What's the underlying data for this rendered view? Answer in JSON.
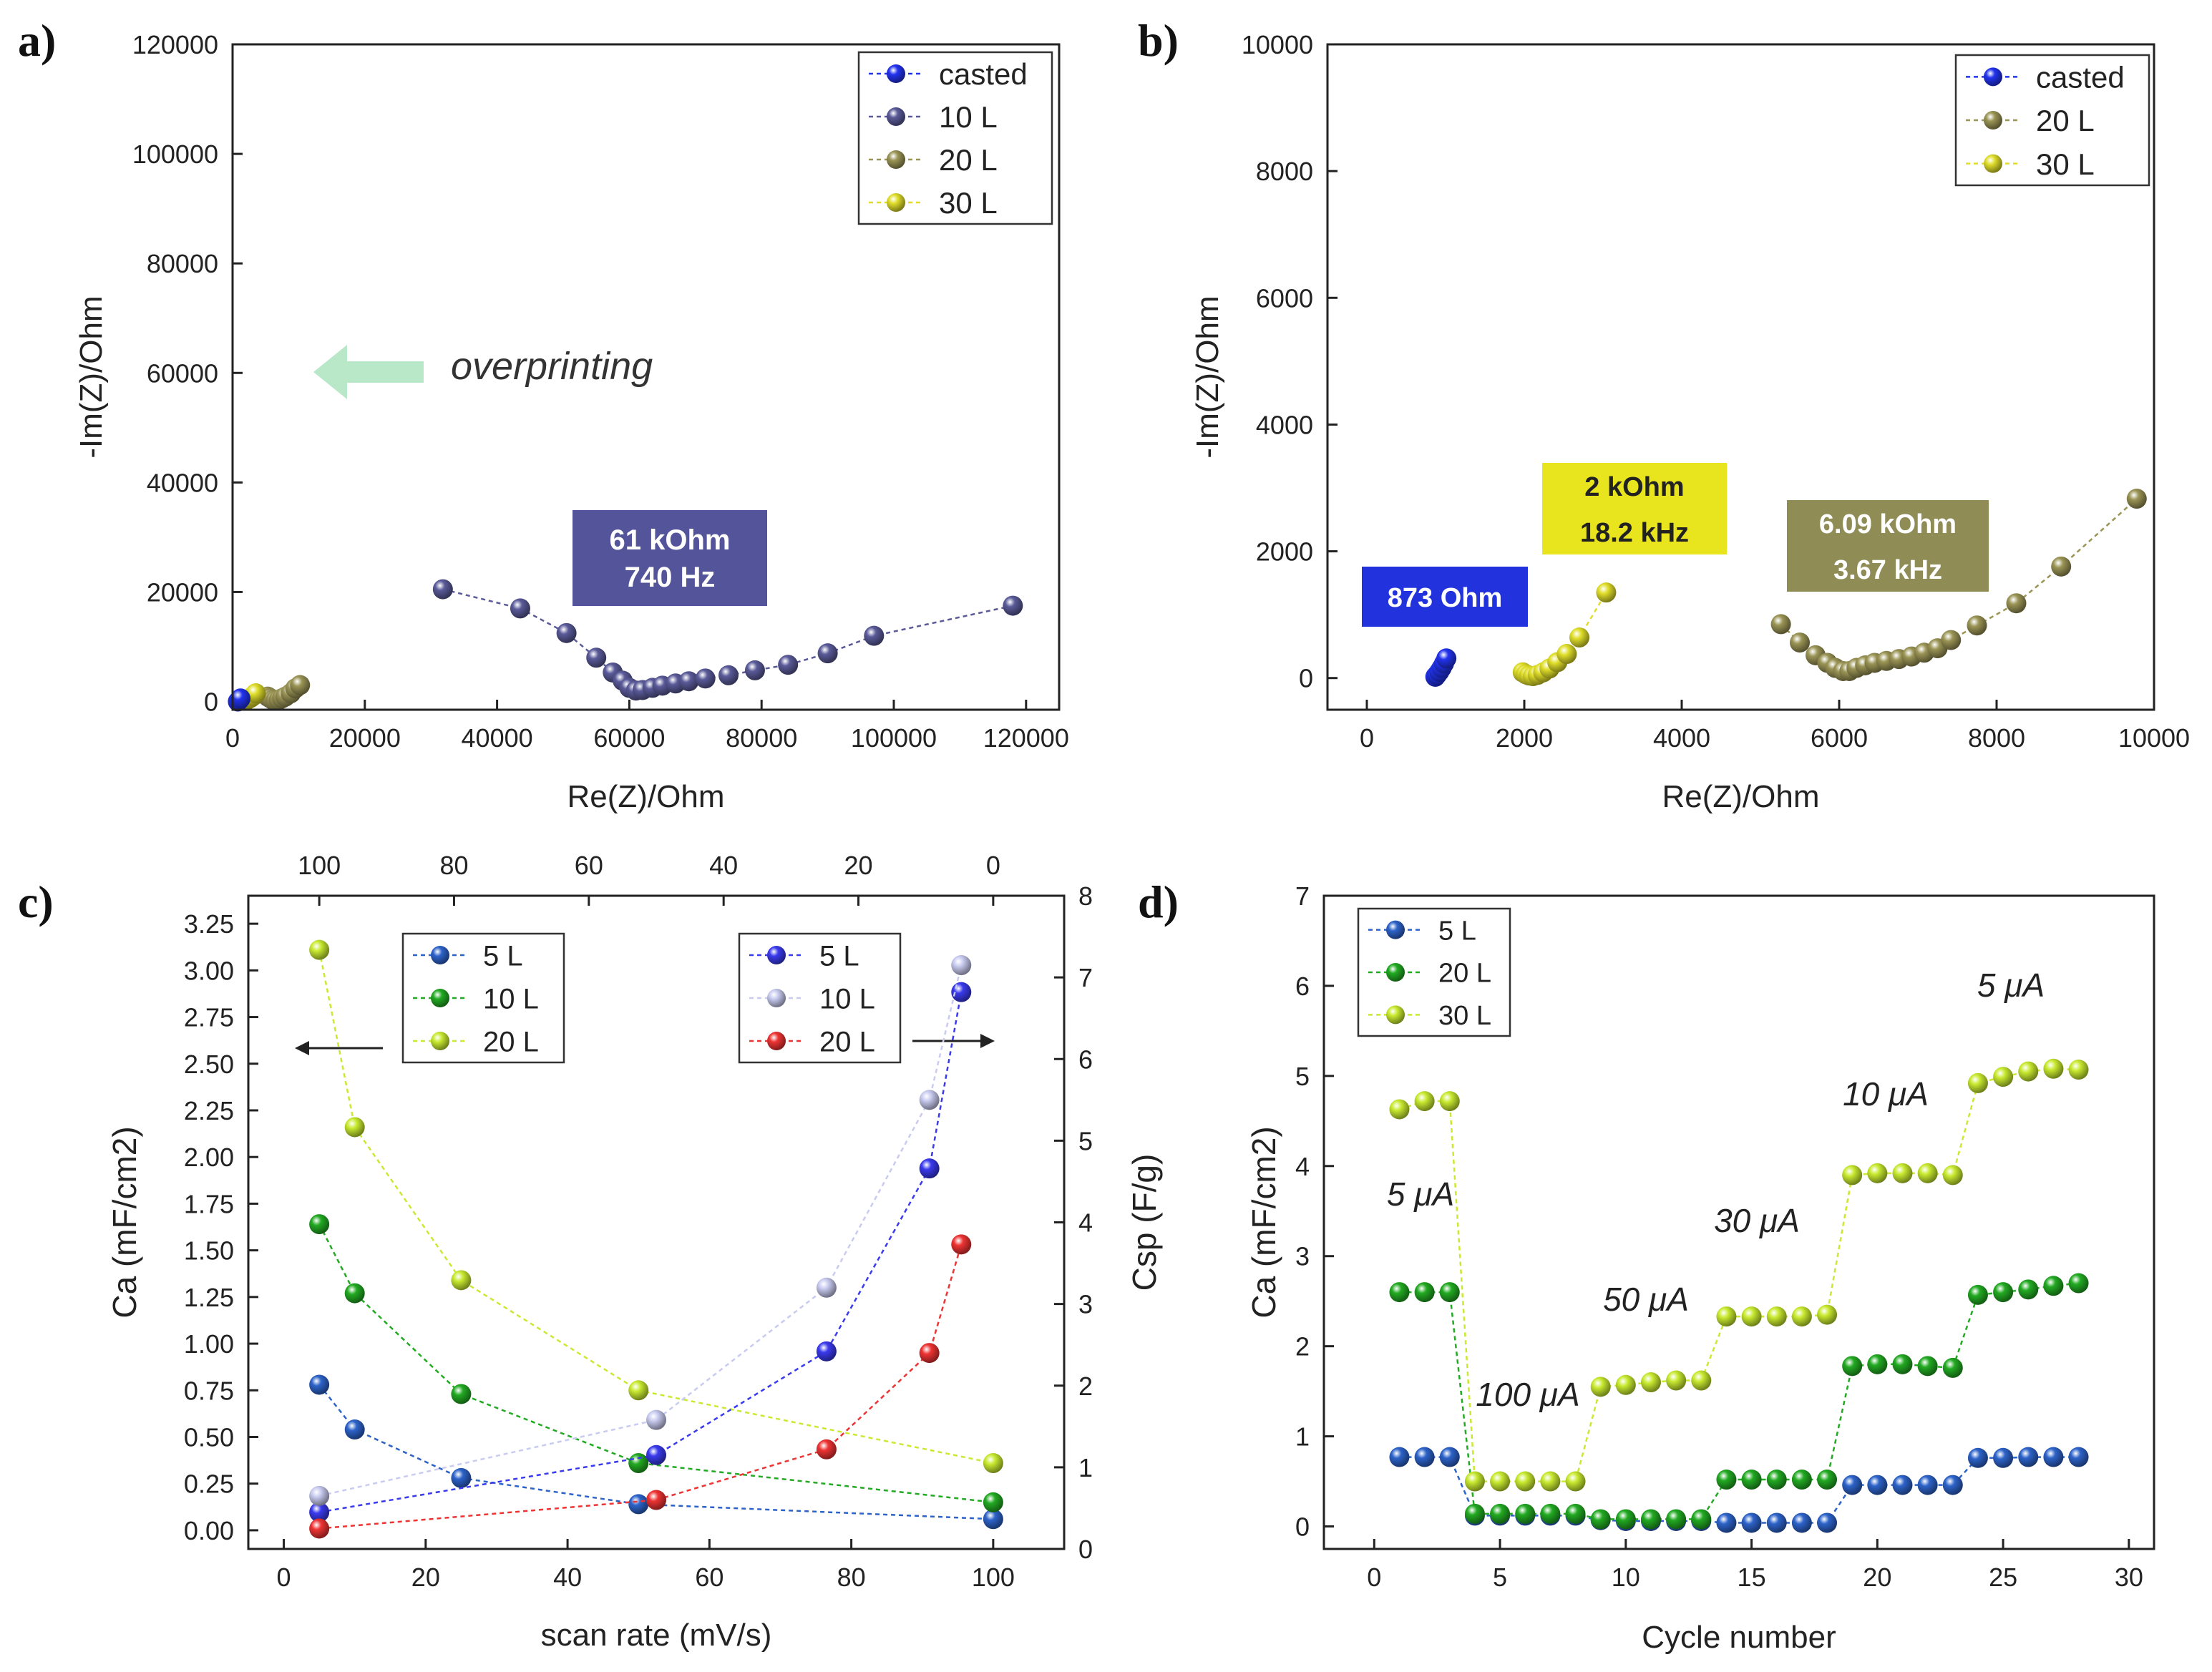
{
  "figure": {
    "panel_letters": [
      "a)",
      "b)",
      "c)",
      "d)"
    ]
  },
  "colors": {
    "casted": "#2233ee",
    "L10": "#5a5a99",
    "L20": "#9a9455",
    "L30": "#e0de2a",
    "box_casted": "#2233dd",
    "box_10L": "#54549a",
    "box_30L": "#e8e41e",
    "box_20L": "#8f8c55",
    "c_blue": "#2d63c9",
    "c_green": "#22aa22",
    "c_lime": "#c8ea30",
    "c_red": "#ee3333",
    "c_purple": "#3a3aee",
    "c_lavender": "#c9cbf0",
    "arrow_green": "#b8e8c8"
  },
  "chart_data": [
    {
      "panel": "a)",
      "type": "scatter",
      "xlabel": "Re(Z)/Ohm",
      "ylabel": "-Im(Z)/Ohm",
      "xlim": [
        0,
        125000
      ],
      "ylim": [
        -1500,
        120000
      ],
      "xticks": [
        "0",
        "20000",
        "40000",
        "60000",
        "80000",
        "100000",
        "120000"
      ],
      "yticks": [
        "0",
        "20000",
        "40000",
        "60000",
        "80000",
        "100000",
        "120000"
      ],
      "annotation_text": "overprinting",
      "box_text": [
        "61 kOhm",
        "740 Hz"
      ],
      "legend": [
        "casted",
        "10 L",
        "20 L",
        "30 L"
      ],
      "series": [
        {
          "name": "casted",
          "color_key": "casted",
          "points": [
            [
              800,
              0
            ],
            [
              1000,
              250
            ],
            [
              1200,
              550
            ]
          ]
        },
        {
          "name": "10 L",
          "color_key": "L10",
          "points": [
            [
              31800,
              20500
            ],
            [
              43500,
              17000
            ],
            [
              50500,
              12500
            ],
            [
              55000,
              8000
            ],
            [
              57500,
              5300
            ],
            [
              59000,
              3800
            ],
            [
              60000,
              2500
            ],
            [
              61000,
              2000
            ],
            [
              62000,
              2100
            ],
            [
              63500,
              2500
            ],
            [
              65000,
              2900
            ],
            [
              67000,
              3300
            ],
            [
              69000,
              3700
            ],
            [
              71500,
              4200
            ],
            [
              75000,
              4800
            ],
            [
              79000,
              5700
            ],
            [
              84000,
              6700
            ],
            [
              90000,
              8800
            ],
            [
              97000,
              12000
            ],
            [
              118000,
              17500
            ]
          ]
        },
        {
          "name": "20 L",
          "color_key": "L20",
          "points": [
            [
              5300,
              900
            ],
            [
              5700,
              600
            ],
            [
              6100,
              300
            ],
            [
              6500,
              200
            ],
            [
              7000,
              300
            ],
            [
              7500,
              600
            ],
            [
              8000,
              900
            ],
            [
              8800,
              1500
            ],
            [
              9500,
              2400
            ],
            [
              10200,
              3000
            ]
          ]
        },
        {
          "name": "30 L",
          "color_key": "L30",
          "points": [
            [
              2000,
              200
            ],
            [
              2300,
              400
            ],
            [
              2700,
              650
            ],
            [
              3100,
              1000
            ],
            [
              3500,
              1500
            ]
          ]
        }
      ]
    },
    {
      "panel": "b)",
      "type": "scatter",
      "xlabel": "Re(Z)/Ohm",
      "ylabel": "-Im(Z)/Ohm",
      "xlim": [
        -500,
        10000
      ],
      "ylim": [
        -500,
        10000
      ],
      "xticks": [
        "0",
        "2000",
        "4000",
        "6000",
        "8000",
        "10000"
      ],
      "yticks": [
        "0",
        "2000",
        "4000",
        "6000",
        "8000",
        "10000"
      ],
      "legend": [
        "casted",
        "20 L",
        "30 L"
      ],
      "boxes": [
        {
          "lines": [
            "873 Ohm"
          ],
          "color_key": "box_casted",
          "text_color": "#ffffff"
        },
        {
          "lines": [
            "2 kOhm",
            "18.2 kHz"
          ],
          "color_key": "box_30L",
          "text_color": "#222222"
        },
        {
          "lines": [
            "6.09 kOhm",
            "3.67 kHz"
          ],
          "color_key": "box_20L",
          "text_color": "#ffffff"
        }
      ],
      "series": [
        {
          "name": "casted",
          "color_key": "casted",
          "points": [
            [
              870,
              20
            ],
            [
              890,
              50
            ],
            [
              920,
              100
            ],
            [
              950,
              160
            ],
            [
              980,
              230
            ],
            [
              1010,
              310
            ]
          ]
        },
        {
          "name": "20 L",
          "color_key": "L20",
          "points": [
            [
              5260,
              850
            ],
            [
              5500,
              560
            ],
            [
              5700,
              360
            ],
            [
              5850,
              240
            ],
            [
              5950,
              160
            ],
            [
              6050,
              110
            ],
            [
              6130,
              110
            ],
            [
              6220,
              160
            ],
            [
              6330,
              200
            ],
            [
              6450,
              240
            ],
            [
              6600,
              270
            ],
            [
              6760,
              300
            ],
            [
              6920,
              340
            ],
            [
              7080,
              400
            ],
            [
              7250,
              470
            ],
            [
              7420,
              600
            ],
            [
              7750,
              830
            ],
            [
              8250,
              1180
            ],
            [
              8820,
              1760
            ],
            [
              9780,
              2830
            ]
          ]
        },
        {
          "name": "30 L",
          "color_key": "L30",
          "points": [
            [
              1980,
              90
            ],
            [
              2020,
              60
            ],
            [
              2060,
              40
            ],
            [
              2110,
              30
            ],
            [
              2170,
              50
            ],
            [
              2240,
              90
            ],
            [
              2320,
              150
            ],
            [
              2420,
              250
            ],
            [
              2540,
              380
            ],
            [
              2700,
              640
            ],
            [
              3040,
              1350
            ]
          ]
        }
      ]
    },
    {
      "panel": "c)",
      "type": "line",
      "xlabel": "scan rate (mV/s)",
      "ylabel_left": "Ca (mF/cm2)",
      "ylabel_right": "Csp (F/g)",
      "xlim": [
        -5,
        110
      ],
      "ylim_left": [
        -0.1,
        3.4
      ],
      "ylim_right": [
        0,
        8
      ],
      "xticks": [
        "0",
        "20",
        "40",
        "60",
        "80",
        "100"
      ],
      "top_xticks": [
        "100",
        "80",
        "60",
        "40",
        "20",
        "0"
      ],
      "yticks_left": [
        "0.00",
        "0.25",
        "0.50",
        "0.75",
        "1.00",
        "1.25",
        "1.50",
        "1.75",
        "2.00",
        "2.25",
        "2.50",
        "2.75",
        "3.00",
        "3.25"
      ],
      "yticks_right": [
        "0",
        "1",
        "2",
        "3",
        "4",
        "5",
        "6",
        "7",
        "8"
      ],
      "legend_left": [
        "5 L",
        "10 L",
        "20 L"
      ],
      "legend_right": [
        "5 L",
        "10 L",
        "20 L"
      ],
      "series_left": [
        {
          "name": "5 L",
          "color_key": "c_blue",
          "x": [
            5,
            10,
            25,
            50,
            100
          ],
          "values": [
            0.78,
            0.54,
            0.28,
            0.14,
            0.06
          ]
        },
        {
          "name": "10 L",
          "color_key": "c_green",
          "x": [
            5,
            10,
            25,
            50,
            100
          ],
          "values": [
            1.64,
            1.27,
            0.73,
            0.36,
            0.15
          ]
        },
        {
          "name": "20 L",
          "color_key": "c_lime",
          "x": [
            5,
            10,
            25,
            50,
            100
          ],
          "values": [
            3.11,
            2.16,
            1.34,
            0.75,
            0.36
          ]
        }
      ],
      "series_right": [
        {
          "name": "5 L",
          "color_key": "c_purple",
          "x": [
            5,
            52.5,
            76.5,
            91,
            95.5
          ],
          "values": [
            0.45,
            1.15,
            2.42,
            4.66,
            6.82
          ]
        },
        {
          "name": "10 L",
          "color_key": "c_lavender",
          "x": [
            5,
            52.5,
            76.5,
            91,
            95.5
          ],
          "values": [
            0.65,
            1.58,
            3.2,
            5.5,
            7.15
          ]
        },
        {
          "name": "20 L",
          "color_key": "c_red",
          "x": [
            5,
            52.5,
            76.5,
            91,
            95.5
          ],
          "values": [
            0.25,
            0.6,
            1.22,
            2.4,
            3.73
          ]
        }
      ]
    },
    {
      "panel": "d)",
      "type": "scatter",
      "xlabel": "Cycle number",
      "ylabel": "Ca (mF/cm2)",
      "xlim": [
        -2,
        31
      ],
      "ylim": [
        -0.25,
        7
      ],
      "xticks": [
        "0",
        "5",
        "10",
        "15",
        "20",
        "25",
        "30"
      ],
      "yticks": [
        "0",
        "1",
        "2",
        "3",
        "4",
        "5",
        "6",
        "7"
      ],
      "legend": [
        "5 L",
        "20 L",
        "30 L"
      ],
      "current_labels": [
        "5 μA",
        "100 μA",
        "50 μA",
        "30 μA",
        "10 μA",
        "5 μA"
      ],
      "series": [
        {
          "name": "5 L",
          "color_key": "c_blue",
          "x": [
            1,
            2,
            3,
            4,
            5,
            6,
            7,
            8,
            9,
            10,
            11,
            12,
            13,
            14,
            15,
            16,
            17,
            18,
            19,
            20,
            21,
            22,
            23,
            24,
            25,
            26,
            27,
            28
          ],
          "values": [
            0.77,
            0.77,
            0.77,
            0.12,
            0.12,
            0.12,
            0.12,
            0.12,
            0.07,
            0.06,
            0.06,
            0.06,
            0.06,
            0.04,
            0.04,
            0.04,
            0.04,
            0.04,
            0.46,
            0.46,
            0.46,
            0.46,
            0.46,
            0.76,
            0.76,
            0.77,
            0.77,
            0.77
          ]
        },
        {
          "name": "20 L",
          "color_key": "c_green",
          "x": [
            1,
            2,
            3,
            4,
            5,
            6,
            7,
            8,
            9,
            10,
            11,
            12,
            13,
            14,
            15,
            16,
            17,
            18,
            19,
            20,
            21,
            22,
            23,
            24,
            25,
            26,
            27,
            28
          ],
          "values": [
            2.6,
            2.6,
            2.6,
            0.14,
            0.14,
            0.14,
            0.14,
            0.14,
            0.08,
            0.08,
            0.08,
            0.08,
            0.08,
            0.52,
            0.52,
            0.52,
            0.52,
            0.52,
            1.78,
            1.8,
            1.8,
            1.78,
            1.76,
            2.57,
            2.6,
            2.63,
            2.67,
            2.7
          ]
        },
        {
          "name": "30 L",
          "color_key": "c_lime",
          "x": [
            1,
            2,
            3,
            4,
            5,
            6,
            7,
            8,
            9,
            10,
            11,
            12,
            13,
            14,
            15,
            16,
            17,
            18,
            19,
            20,
            21,
            22,
            23,
            24,
            25,
            26,
            27,
            28
          ],
          "values": [
            4.63,
            4.72,
            4.72,
            0.5,
            0.5,
            0.5,
            0.5,
            0.5,
            1.55,
            1.57,
            1.6,
            1.62,
            1.62,
            2.33,
            2.33,
            2.33,
            2.33,
            2.35,
            3.9,
            3.92,
            3.92,
            3.92,
            3.9,
            4.92,
            4.99,
            5.05,
            5.08,
            5.07
          ]
        }
      ]
    }
  ]
}
